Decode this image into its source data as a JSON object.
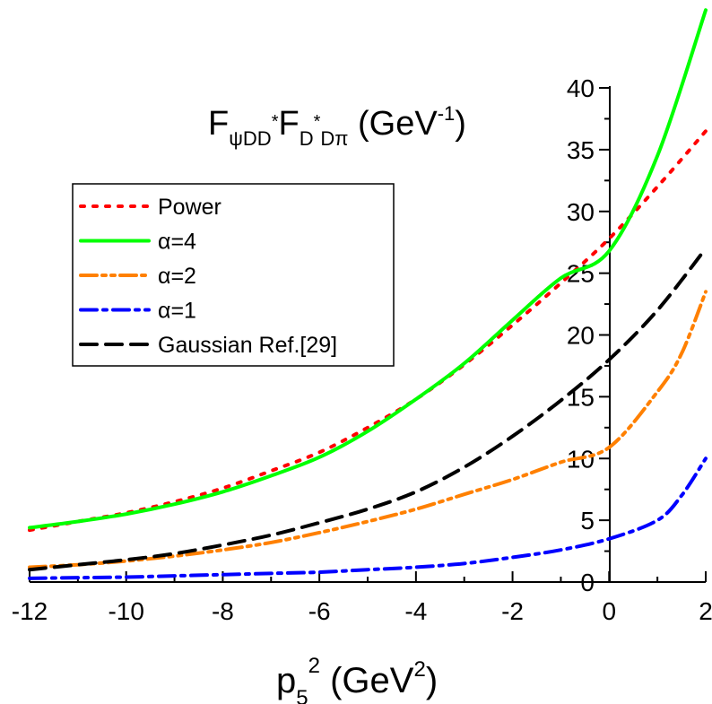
{
  "chart_data": {
    "type": "line",
    "title_main": "F",
    "title_sub1": "ψDD",
    "title_sup1": "*",
    "title_main2": "F",
    "title_sub2a": "D",
    "title_sup2": "*",
    "title_sub2b": "Dπ",
    "title_unit": " (GeV",
    "title_unit_sup": "-1",
    "title_unit_close": ")",
    "xlabel_main": "p",
    "xlabel_sub": "5",
    "xlabel_sup": "2",
    "xlabel_unit": " (GeV",
    "xlabel_unit_sup": "2",
    "xlabel_unit_close": ")",
    "xlim": [
      -12,
      2
    ],
    "ylim": [
      0,
      40
    ],
    "x_ticks": [
      -12,
      -10,
      -8,
      -6,
      -4,
      -2,
      0,
      2
    ],
    "y_ticks": [
      0,
      5,
      10,
      15,
      20,
      25,
      30,
      35,
      40
    ],
    "x_tick_labels": [
      "-12",
      "-10",
      "-8",
      "-6",
      "-4",
      "-2",
      "0",
      "2"
    ],
    "y_tick_labels": [
      "0",
      "5",
      "10",
      "15",
      "20",
      "25",
      "30",
      "35",
      "40"
    ],
    "legend_placement": "upper-left",
    "series": [
      {
        "name": "Power",
        "color": "#ff0000",
        "dash": "dot",
        "x": [
          -12,
          -11,
          -10,
          -9,
          -8,
          -7,
          -6,
          -5,
          -4,
          -3,
          -2,
          -1,
          0,
          1,
          2
        ],
        "y": [
          4.2,
          4.9,
          5.6,
          6.5,
          7.6,
          9.0,
          10.5,
          12.5,
          14.8,
          17.6,
          20.8,
          24.2,
          27.8,
          32.0,
          36.5
        ]
      },
      {
        "name": "α=4",
        "color": "#00ff00",
        "dash": "solid",
        "x": [
          -12,
          -11,
          -10,
          -9,
          -8,
          -7,
          -6,
          -5,
          -4,
          -3,
          -2,
          -1,
          0,
          1,
          2
        ],
        "y": [
          4.4,
          4.9,
          5.5,
          6.3,
          7.3,
          8.6,
          10.1,
          12.2,
          14.8,
          17.7,
          21.2,
          24.6,
          26.8,
          34.5,
          46.3
        ]
      },
      {
        "name": "α=2",
        "color": "#ff8000",
        "dash": "dashdotdot",
        "x": [
          -12,
          -11,
          -10,
          -9,
          -8,
          -7,
          -6,
          -5,
          -4,
          -3,
          -2,
          -1,
          0,
          1,
          1.5,
          2
        ],
        "y": [
          1.2,
          1.4,
          1.7,
          2.1,
          2.6,
          3.2,
          4.0,
          4.9,
          5.9,
          7.1,
          8.3,
          9.7,
          10.9,
          15.4,
          18.5,
          23.5
        ]
      },
      {
        "name": "α=1",
        "color": "#0000ff",
        "dash": "dashdot",
        "x": [
          -12,
          -11,
          -10,
          -9,
          -8,
          -7,
          -6,
          -5,
          -4,
          -3,
          -2,
          -1,
          0,
          1,
          1.5,
          2
        ],
        "y": [
          0.3,
          0.35,
          0.4,
          0.5,
          0.6,
          0.7,
          0.8,
          1.0,
          1.2,
          1.5,
          2.0,
          2.6,
          3.5,
          5.0,
          7.0,
          10.0
        ]
      },
      {
        "name": "Gaussian Ref.[29]",
        "color": "#000000",
        "dash": "dash",
        "x": [
          -12,
          -11,
          -10,
          -9,
          -8,
          -7,
          -6,
          -5,
          -4,
          -3,
          -2,
          -1,
          0,
          1,
          2
        ],
        "y": [
          1.0,
          1.4,
          1.8,
          2.3,
          3.0,
          3.8,
          4.8,
          5.9,
          7.3,
          9.3,
          11.8,
          14.7,
          18.0,
          22.0,
          27.0
        ]
      }
    ]
  }
}
